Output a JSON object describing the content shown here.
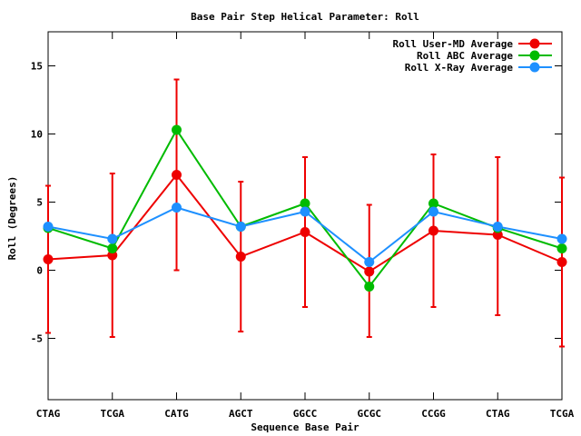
{
  "chart_data": {
    "type": "line",
    "title": "Base Pair Step Helical Parameter: Roll",
    "xlabel": "Sequence Base Pair",
    "ylabel": "Roll (Degrees)",
    "categories": [
      "CTAG",
      "TCGA",
      "CATG",
      "AGCT",
      "GGCC",
      "GCGC",
      "CCGG",
      "CTAG",
      "TCGA"
    ],
    "ylim": [
      -9.5,
      17.5
    ],
    "yticks": [
      -5,
      0,
      5,
      10,
      15
    ],
    "legend_position": "top-right",
    "grid": false,
    "series": [
      {
        "name": "Roll User-MD Average",
        "color": "#ee0000",
        "values": [
          0.8,
          1.1,
          7.0,
          1.0,
          2.8,
          -0.1,
          2.9,
          2.6,
          0.6
        ],
        "error_low": [
          -4.6,
          -4.9,
          0.0,
          -4.5,
          -2.7,
          -4.9,
          -2.7,
          -3.3,
          -5.6
        ],
        "error_high": [
          6.2,
          7.1,
          14.0,
          6.5,
          8.3,
          4.8,
          8.5,
          8.3,
          6.8
        ]
      },
      {
        "name": "Roll ABC Average",
        "color": "#00bb00",
        "values": [
          3.1,
          1.6,
          10.3,
          3.2,
          4.9,
          -1.2,
          4.9,
          3.1,
          1.6
        ]
      },
      {
        "name": "Roll X-Ray Average",
        "color": "#1e90ff",
        "values": [
          3.2,
          2.3,
          4.6,
          3.2,
          4.3,
          0.6,
          4.3,
          3.2,
          2.3
        ]
      }
    ]
  }
}
